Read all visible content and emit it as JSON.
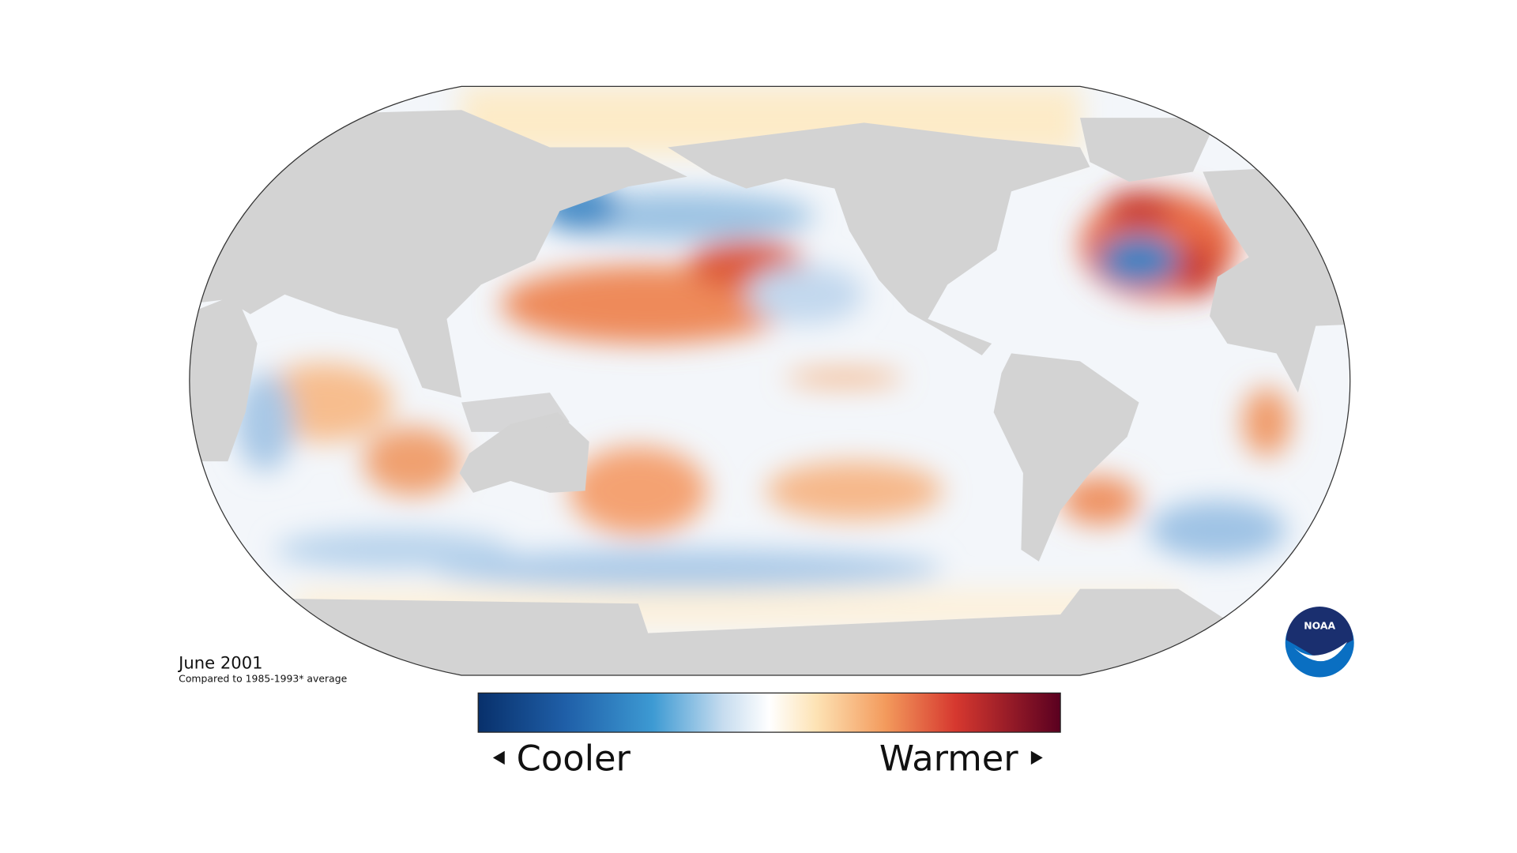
{
  "title": "June 2001",
  "subtitle": "Compared to 1985-1993* average",
  "legend": {
    "low_label": "Cooler",
    "high_label": "Warmer"
  },
  "logo": "NOAA"
}
